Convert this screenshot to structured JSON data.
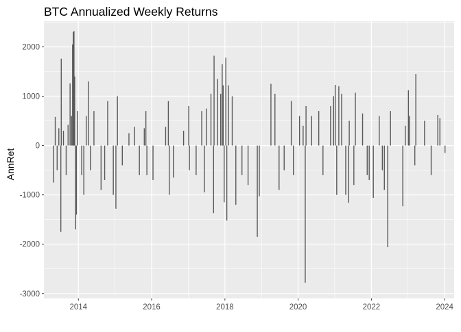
{
  "chart_data": {
    "type": "bar",
    "title": "BTC Annualized Weekly Returns",
    "xlabel": "",
    "ylabel": "AnnRet",
    "x_axis_type": "date",
    "xlim": [
      "2013-01-22",
      "2024-04-05"
    ],
    "ylim": [
      -3100,
      2520
    ],
    "x_ticks": [
      {
        "date": "2014-01-01",
        "label": "2014"
      },
      {
        "date": "2016-01-01",
        "label": "2016"
      },
      {
        "date": "2018-01-01",
        "label": "2018"
      },
      {
        "date": "2020-01-01",
        "label": "2020"
      },
      {
        "date": "2022-01-01",
        "label": "2022"
      },
      {
        "date": "2024-01-01",
        "label": "2024"
      }
    ],
    "y_ticks": [
      {
        "value": 2000,
        "label": "2000"
      },
      {
        "value": 1000,
        "label": "1000"
      },
      {
        "value": 0,
        "label": "0"
      },
      {
        "value": -1000,
        "label": "-1000"
      },
      {
        "value": -2000,
        "label": "-2000"
      },
      {
        "value": -3000,
        "label": "-3000"
      }
    ],
    "grid": true,
    "legend": "none",
    "colors": {
      "bar": "#595959",
      "panel": "#EBEBEB",
      "grid": "#FFFFFF",
      "axis_text": "#4D4D4D"
    },
    "series": [
      {
        "values": [
          [
            "2013-04-28",
            -750
          ],
          [
            "2013-05-15",
            580
          ],
          [
            "2013-06-03",
            -500
          ],
          [
            "2013-06-20",
            350
          ],
          [
            "2013-07-10",
            -1750
          ],
          [
            "2013-07-14",
            1760
          ],
          [
            "2013-08-05",
            300
          ],
          [
            "2013-09-01",
            -600
          ],
          [
            "2013-09-20",
            420
          ],
          [
            "2013-10-10",
            1260
          ],
          [
            "2013-10-25",
            600
          ],
          [
            "2013-11-04",
            2050
          ],
          [
            "2013-11-11",
            2300
          ],
          [
            "2013-11-18",
            2320
          ],
          [
            "2013-11-25",
            1400
          ],
          [
            "2013-12-04",
            -1700
          ],
          [
            "2013-12-12",
            -1400
          ],
          [
            "2013-12-22",
            700
          ],
          [
            "2014-02-03",
            -600
          ],
          [
            "2014-02-24",
            -1000
          ],
          [
            "2014-03-20",
            600
          ],
          [
            "2014-04-10",
            1300
          ],
          [
            "2014-05-01",
            -500
          ],
          [
            "2014-06-05",
            700
          ],
          [
            "2014-08-15",
            -900
          ],
          [
            "2014-09-20",
            -700
          ],
          [
            "2014-10-20",
            900
          ],
          [
            "2014-12-15",
            -1000
          ],
          [
            "2015-01-10",
            -1280
          ],
          [
            "2015-01-25",
            1000
          ],
          [
            "2015-03-15",
            -400
          ],
          [
            "2015-05-20",
            250
          ],
          [
            "2015-07-15",
            380
          ],
          [
            "2015-09-01",
            -600
          ],
          [
            "2015-10-20",
            350
          ],
          [
            "2015-11-05",
            700
          ],
          [
            "2015-11-15",
            -600
          ],
          [
            "2016-01-15",
            -700
          ],
          [
            "2016-05-20",
            380
          ],
          [
            "2016-06-16",
            900
          ],
          [
            "2016-06-25",
            -1000
          ],
          [
            "2016-08-05",
            -650
          ],
          [
            "2016-11-15",
            300
          ],
          [
            "2017-01-05",
            800
          ],
          [
            "2017-01-12",
            -500
          ],
          [
            "2017-03-20",
            -600
          ],
          [
            "2017-05-15",
            700
          ],
          [
            "2017-06-10",
            -950
          ],
          [
            "2017-06-30",
            750
          ],
          [
            "2017-08-15",
            1050
          ],
          [
            "2017-09-10",
            -1370
          ],
          [
            "2017-09-15",
            1820
          ],
          [
            "2017-10-20",
            1350
          ],
          [
            "2017-11-20",
            1050
          ],
          [
            "2017-12-05",
            1650
          ],
          [
            "2017-12-15",
            1220
          ],
          [
            "2017-12-25",
            -1150
          ],
          [
            "2018-01-10",
            1780
          ],
          [
            "2018-01-20",
            -1520
          ],
          [
            "2018-02-05",
            1220
          ],
          [
            "2018-03-15",
            1000
          ],
          [
            "2018-04-20",
            -1200
          ],
          [
            "2018-06-20",
            -600
          ],
          [
            "2018-08-20",
            -800
          ],
          [
            "2018-11-20",
            -1850
          ],
          [
            "2018-12-10",
            -1030
          ],
          [
            "2019-04-05",
            1250
          ],
          [
            "2019-05-15",
            1050
          ],
          [
            "2019-06-25",
            -900
          ],
          [
            "2019-08-15",
            -500
          ],
          [
            "2019-10-25",
            900
          ],
          [
            "2019-11-15",
            -600
          ],
          [
            "2020-01-15",
            600
          ],
          [
            "2020-02-20",
            400
          ],
          [
            "2020-03-12",
            -2780
          ],
          [
            "2020-03-20",
            800
          ],
          [
            "2020-05-15",
            600
          ],
          [
            "2020-07-25",
            700
          ],
          [
            "2020-09-05",
            -600
          ],
          [
            "2020-11-20",
            800
          ],
          [
            "2020-12-20",
            1000
          ],
          [
            "2021-01-05",
            1230
          ],
          [
            "2021-01-20",
            -1000
          ],
          [
            "2021-02-10",
            1200
          ],
          [
            "2021-03-10",
            1050
          ],
          [
            "2021-04-20",
            -1000
          ],
          [
            "2021-05-19",
            -1160
          ],
          [
            "2021-05-25",
            500
          ],
          [
            "2021-07-10",
            -800
          ],
          [
            "2021-07-25",
            1070
          ],
          [
            "2021-10-05",
            650
          ],
          [
            "2021-11-20",
            -600
          ],
          [
            "2021-12-10",
            -700
          ],
          [
            "2022-01-20",
            -1060
          ],
          [
            "2022-03-20",
            600
          ],
          [
            "2022-04-20",
            -500
          ],
          [
            "2022-05-10",
            -900
          ],
          [
            "2022-06-13",
            -2060
          ],
          [
            "2022-07-10",
            700
          ],
          [
            "2022-11-10",
            -1230
          ],
          [
            "2022-12-05",
            400
          ],
          [
            "2023-01-05",
            1120
          ],
          [
            "2023-01-15",
            600
          ],
          [
            "2023-03-10",
            -400
          ],
          [
            "2023-03-20",
            1450
          ],
          [
            "2023-06-15",
            500
          ],
          [
            "2023-08-20",
            -600
          ],
          [
            "2023-10-25",
            620
          ],
          [
            "2023-11-15",
            550
          ],
          [
            "2024-01-05",
            -150
          ]
        ]
      }
    ]
  }
}
